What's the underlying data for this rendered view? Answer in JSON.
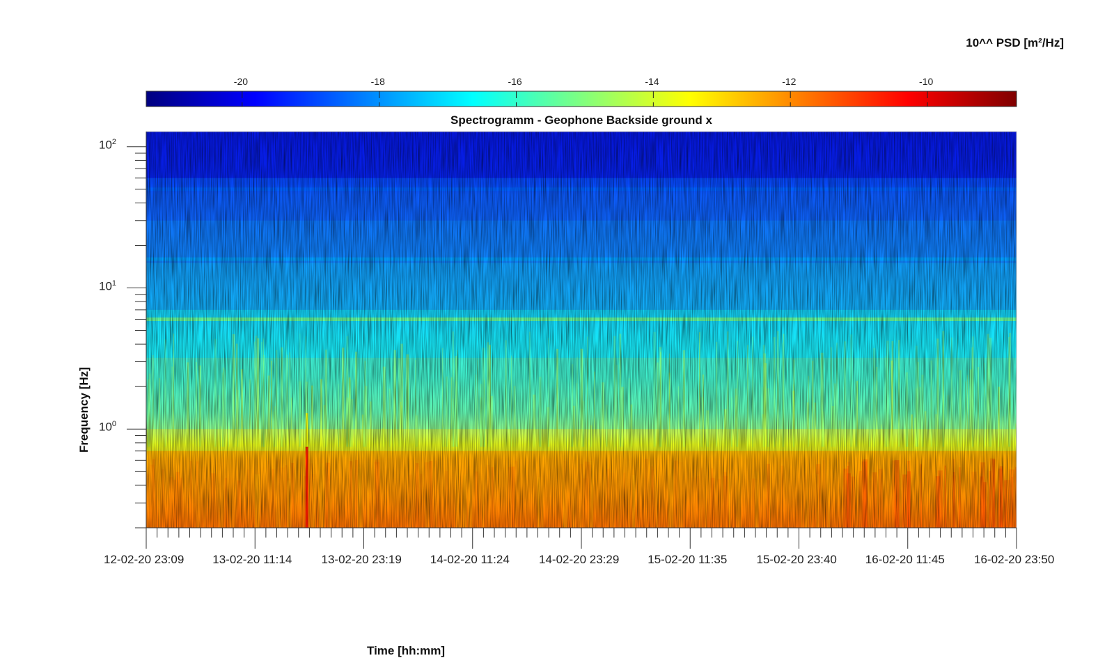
{
  "chart_data": {
    "type": "heatmap",
    "title": "Spectrogramm - Geophone Backside ground x",
    "xlabel": "Time [hh:mm]",
    "ylabel": "Frequency [Hz]",
    "x_ticks": [
      "12-02-20 23:09",
      "13-02-20 11:14",
      "13-02-20 23:19",
      "14-02-20 11:24",
      "14-02-20 23:29",
      "15-02-20 11:35",
      "15-02-20 23:40",
      "16-02-20 11:45",
      "16-02-20 23:50"
    ],
    "y_scale": "log",
    "ylim": [
      0.2,
      128
    ],
    "y_ticks": [
      {
        "base": "10",
        "exp": "2",
        "value": 100
      },
      {
        "base": "10",
        "exp": "1",
        "value": 10
      },
      {
        "base": "10",
        "exp": "0",
        "value": 1
      }
    ],
    "colorbar": {
      "label": "10^^ PSD [m²/Hz]",
      "range": [
        -21.4,
        -8.7
      ],
      "ticks": [
        "-20",
        "-18",
        "-16",
        "-14",
        "-12",
        "-10"
      ],
      "tick_values": [
        -20,
        -18,
        -16,
        -14,
        -12,
        -10
      ],
      "colormap": "jet",
      "placement": "top"
    },
    "bands": [
      {
        "f_low": 60,
        "f_high": 128,
        "log_psd": -20.2
      },
      {
        "f_low": 30,
        "f_high": 60,
        "log_psd": -18.8
      },
      {
        "f_low": 15,
        "f_high": 30,
        "log_psd": -18.3
      },
      {
        "f_low": 7,
        "f_high": 15,
        "log_psd": -17.6
      },
      {
        "f_low": 3.2,
        "f_high": 7,
        "log_psd": -16.6
      },
      {
        "f_low": 1,
        "f_high": 3.2,
        "log_psd": -15.6
      },
      {
        "f_low": 0.7,
        "f_high": 1,
        "log_psd": -14.2
      },
      {
        "f_low": 0.2,
        "f_high": 0.7,
        "log_psd": -12.2
      }
    ],
    "features": [
      {
        "kind": "line",
        "frequency": 6,
        "log_psd": -15.2
      },
      {
        "kind": "line",
        "frequency": 50,
        "log_psd": -18.6
      },
      {
        "kind": "line",
        "frequency": 16,
        "log_psd": -17.8
      },
      {
        "kind": "transient",
        "time": "13-02-20 17:00",
        "log_psd": -10.5
      }
    ]
  }
}
